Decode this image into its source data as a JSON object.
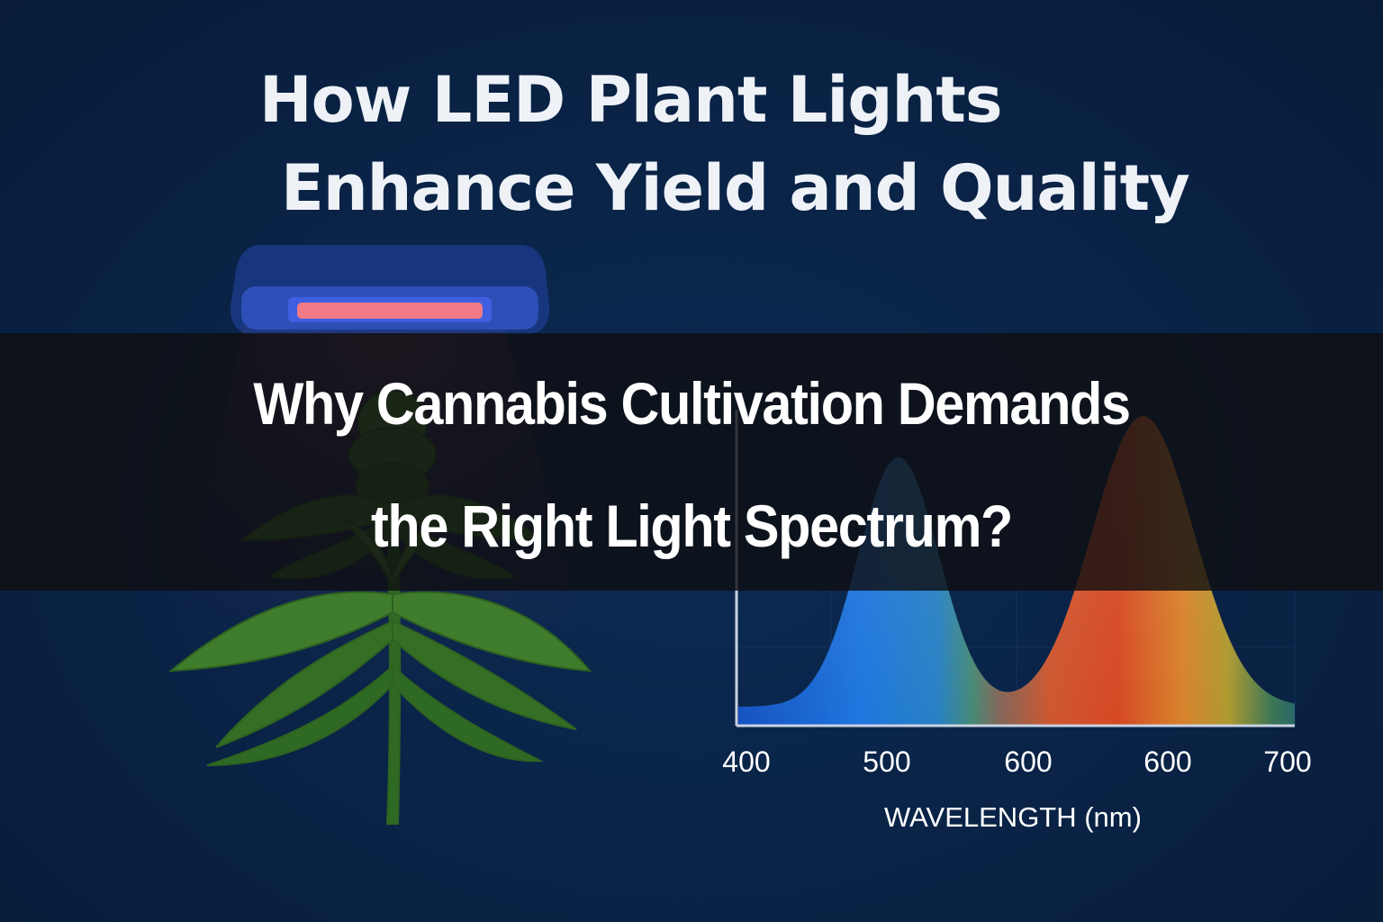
{
  "title": {
    "line1": "How LED Plant Lights",
    "line2": "Enhance Yield and Quality"
  },
  "banner": {
    "line1": "Why Cannabis Cultivation Demands",
    "line2": "the Right Light Spectrum?"
  },
  "illustration": {
    "grow_light_icon": "led-grow-light",
    "plant_icon": "cannabis-plant",
    "colors": {
      "background": "#0a2448",
      "led_panel_edge": "#3b5bd6",
      "led_glow": "#f07b86",
      "leaf": "#3f7d2c"
    }
  },
  "chart_data": {
    "type": "area",
    "title": "",
    "xlabel": "WAVELENGTH (nm)",
    "ylabel": "",
    "x_tick_labels": [
      "400",
      "500",
      "600",
      "600",
      "700"
    ],
    "peaks": [
      {
        "x": 495,
        "relative_intensity": 0.85,
        "color": "#1d74e0"
      },
      {
        "x": 640,
        "relative_intensity": 0.98,
        "color": "#e0431e"
      }
    ],
    "trough": {
      "x": 560,
      "relative_intensity": 0.14
    },
    "baseline_relative_intensity": 0.06,
    "grid": true,
    "xlim": [
      400,
      730
    ],
    "ylim": [
      0,
      1
    ]
  }
}
